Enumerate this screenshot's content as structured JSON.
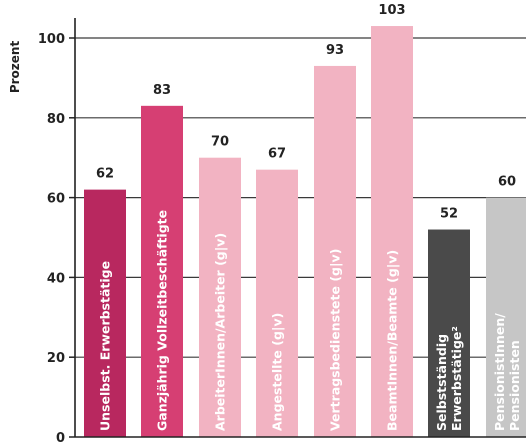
{
  "chart_data": {
    "type": "bar",
    "ylabel": "Prozent",
    "ylim": [
      0,
      108
    ],
    "yticks": [
      0,
      20,
      40,
      60,
      80,
      100
    ],
    "grid": true,
    "categories": [
      [
        "Unselbst. Erwerbstätige"
      ],
      [
        "Ganzjährig Vollzeitbeschäftigte"
      ],
      [
        "ArbeiterInnen/Arbeiter (g|v)"
      ],
      [
        "Angestellte (g|v)"
      ],
      [
        "Vertragsbedienstete (g|v)"
      ],
      [
        "BeamtInnen/Beamte (g|v)"
      ],
      [
        "Selbstständig",
        "Erwerbstätige²"
      ],
      [
        "PensionistInnen/",
        "Pensionisten"
      ]
    ],
    "values": [
      62,
      83,
      70,
      67,
      93,
      103,
      52,
      60
    ],
    "colors": [
      "#b8285f",
      "#d63f73",
      "#f2b3c2",
      "#f2b3c2",
      "#f2b3c2",
      "#f2b3c2",
      "#4a4a4a",
      "#c6c6c6"
    ]
  }
}
